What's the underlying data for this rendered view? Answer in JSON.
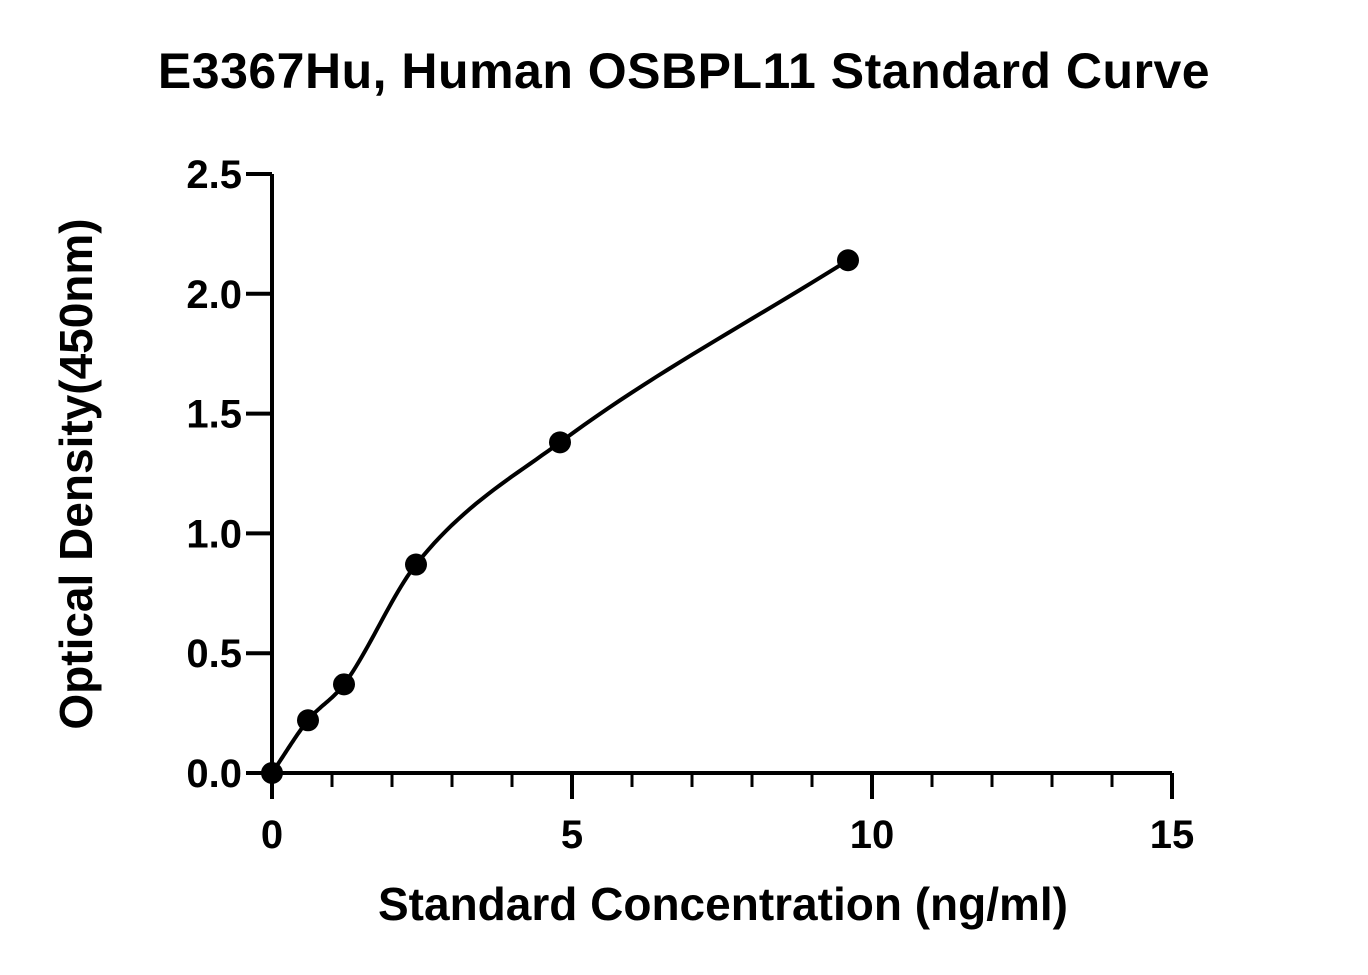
{
  "chart_data": {
    "type": "scatter",
    "title": "E3367Hu, Human OSBPL11 Standard Curve",
    "xlabel": "Standard Concentration (ng/ml)",
    "ylabel": "Optical Density(450nm)",
    "xlim": [
      0,
      15
    ],
    "ylim": [
      0,
      2.5
    ],
    "x_ticks": [
      "0",
      "5",
      "10",
      "15"
    ],
    "y_ticks": [
      "0.0",
      "0.5",
      "1.0",
      "1.5",
      "2.0",
      "2.5"
    ],
    "series": [
      {
        "x": [
          0,
          0.6,
          1.2,
          2.4,
          4.8,
          9.6
        ],
        "y": [
          0.0,
          0.22,
          0.37,
          0.87,
          1.38,
          2.14
        ]
      }
    ],
    "fit_curve": true,
    "grid": false,
    "colors": {
      "points": "#000000",
      "curve": "#000000",
      "axes": "#000000"
    }
  }
}
